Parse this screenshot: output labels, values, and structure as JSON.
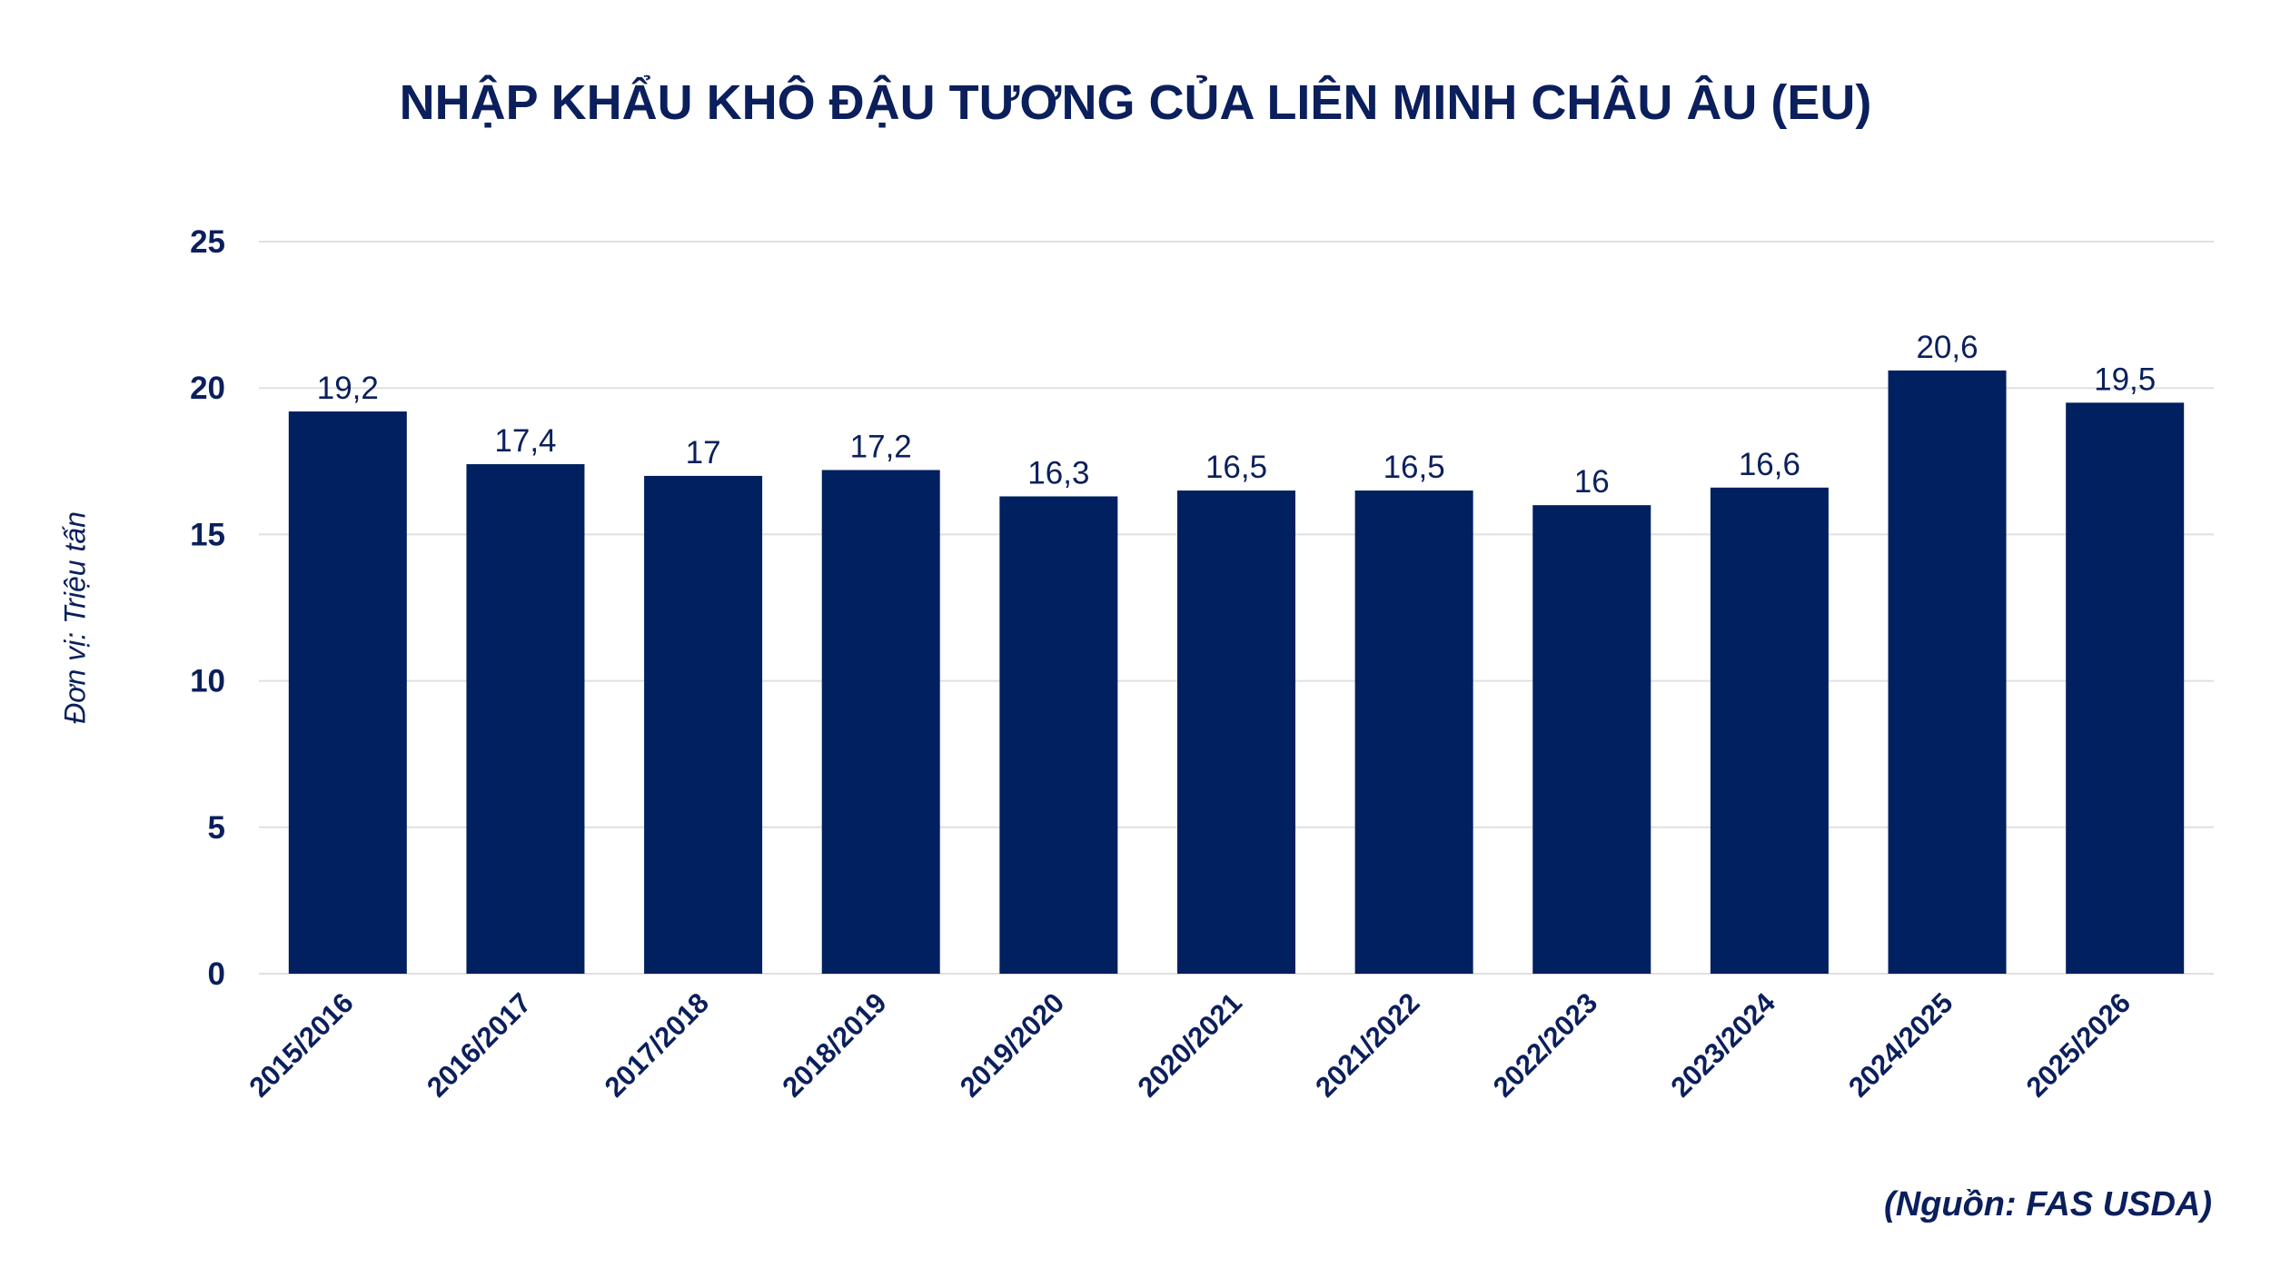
{
  "chart_data": {
    "type": "bar",
    "title": "NHẬP KHẨU KHÔ ĐẬU TƯƠNG CỦA LIÊN MINH CHÂU ÂU (EU)",
    "ylabel": "Đơn vị: Triệu tấn",
    "xlabel": "",
    "categories": [
      "2015/2016",
      "2016/2017",
      "2017/2018",
      "2018/2019",
      "2019/2020",
      "2020/2021",
      "2021/2022",
      "2022/2023",
      "2023/2024",
      "2024/2025",
      "2025/2026"
    ],
    "values": [
      19.2,
      17.4,
      17,
      17.2,
      16.3,
      16.5,
      16.5,
      16,
      16.6,
      20.6,
      19.5
    ],
    "data_labels": [
      "19,2",
      "17,4",
      "17",
      "17,2",
      "16,3",
      "16,5",
      "16,5",
      "16",
      "16,6",
      "20,6",
      "19,5"
    ],
    "ylim": [
      0,
      25
    ],
    "yticks": [
      0,
      5,
      10,
      15,
      20,
      25
    ],
    "grid": true,
    "legend": "none",
    "source": "(Nguồn: FAS USDA)",
    "colors": {
      "bar": "#002060",
      "text": "#0b1f5c",
      "grid": "#e0e0e0"
    }
  }
}
